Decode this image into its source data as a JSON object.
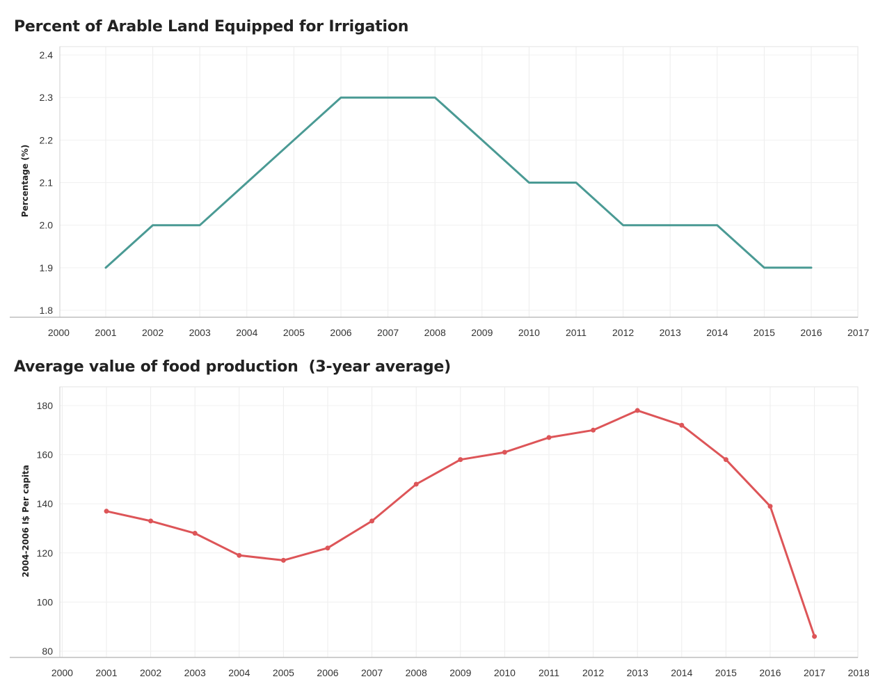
{
  "chart_data": [
    {
      "type": "line",
      "title": "Percent of Arable Land Equipped for Irrigation",
      "xlabel": "",
      "ylabel": "Percentage (%)",
      "xlim": [
        2000,
        2017
      ],
      "ylim": [
        1.8,
        2.4
      ],
      "x_ticks": [
        2000,
        2001,
        2002,
        2003,
        2004,
        2005,
        2006,
        2007,
        2008,
        2009,
        2010,
        2011,
        2012,
        2013,
        2014,
        2015,
        2016,
        2017
      ],
      "y_ticks": [
        "1.8",
        "1.9",
        "2.0",
        "2.1",
        "2.2",
        "2.3",
        "2.4"
      ],
      "grid": true,
      "markers": false,
      "color": "#4a9a94",
      "x": [
        2001,
        2002,
        2003,
        2004,
        2005,
        2006,
        2007,
        2008,
        2009,
        2010,
        2011,
        2012,
        2013,
        2014,
        2015,
        2016
      ],
      "values": [
        1.9,
        2.0,
        2.0,
        2.1,
        2.2,
        2.3,
        2.3,
        2.3,
        2.2,
        2.1,
        2.1,
        2.0,
        2.0,
        2.0,
        1.9,
        1.9
      ]
    },
    {
      "type": "line",
      "title": "Average value of food production  (3-year average)",
      "xlabel": "",
      "ylabel": "2004-2006 I$ Per capita",
      "xlim": [
        2000,
        2018
      ],
      "ylim": [
        80,
        180
      ],
      "x_ticks": [
        2000,
        2001,
        2002,
        2003,
        2004,
        2005,
        2006,
        2007,
        2008,
        2009,
        2010,
        2011,
        2012,
        2013,
        2014,
        2015,
        2016,
        2017,
        2018
      ],
      "y_ticks": [
        "80",
        "100",
        "120",
        "140",
        "160",
        "180"
      ],
      "grid": true,
      "markers": true,
      "color": "#dd5558",
      "x": [
        2001,
        2002,
        2003,
        2004,
        2005,
        2006,
        2007,
        2008,
        2009,
        2010,
        2011,
        2012,
        2013,
        2014,
        2015,
        2016,
        2017
      ],
      "values": [
        137,
        133,
        128,
        119,
        117,
        122,
        133,
        148,
        158,
        161,
        167,
        170,
        178,
        172,
        158,
        139,
        86
      ]
    }
  ]
}
